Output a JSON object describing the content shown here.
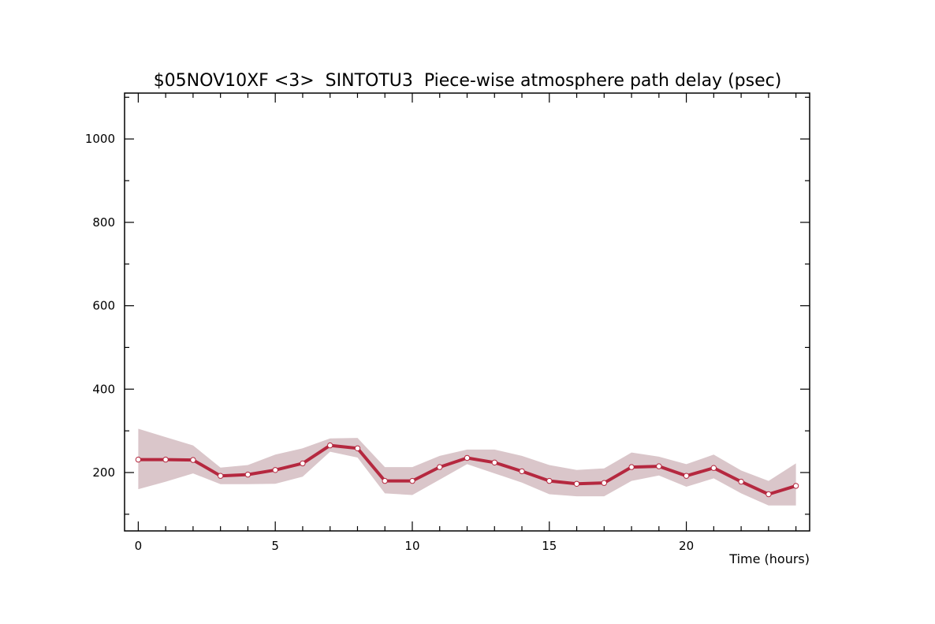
{
  "chart_data": {
    "type": "line",
    "title": "$05NOV10XF <3>  SINTOTU3  Piece-wise atmosphere path delay (psec)",
    "xlabel": "Time (hours)",
    "ylabel": "",
    "xlim": [
      -0.5,
      24.5
    ],
    "ylim": [
      60,
      1110
    ],
    "x_ticks": [
      0,
      5,
      10,
      15,
      20
    ],
    "y_ticks": [
      200,
      400,
      600,
      800,
      1000
    ],
    "x_tick_labels": [
      "0",
      "5",
      "10",
      "15",
      "20"
    ],
    "y_tick_labels": [
      "200",
      "400",
      "600",
      "800",
      "1000"
    ],
    "grid": false,
    "x": [
      0,
      1,
      2,
      3,
      4,
      5,
      6,
      7,
      8,
      9,
      10,
      11,
      12,
      13,
      14,
      15,
      16,
      17,
      18,
      19,
      20,
      21,
      22,
      23,
      24
    ],
    "values": [
      231,
      231,
      230,
      192,
      195,
      206,
      222,
      265,
      258,
      180,
      180,
      213,
      235,
      224,
      203,
      180,
      173,
      175,
      213,
      215,
      192,
      211,
      178,
      148,
      168
    ],
    "band_upper": [
      305,
      285,
      265,
      212,
      218,
      243,
      258,
      282,
      283,
      213,
      213,
      240,
      255,
      255,
      240,
      218,
      206,
      210,
      248,
      238,
      220,
      243,
      205,
      180,
      222
    ],
    "band_lower": [
      160,
      178,
      198,
      172,
      172,
      173,
      190,
      250,
      236,
      150,
      146,
      183,
      220,
      198,
      176,
      148,
      143,
      143,
      180,
      193,
      166,
      186,
      150,
      121,
      121
    ],
    "colors": {
      "line": "#b5283f",
      "band": "#dac6ca",
      "marker_fill": "#ffffff",
      "marker_stroke": "#b5283f",
      "axes": "#000000"
    }
  }
}
